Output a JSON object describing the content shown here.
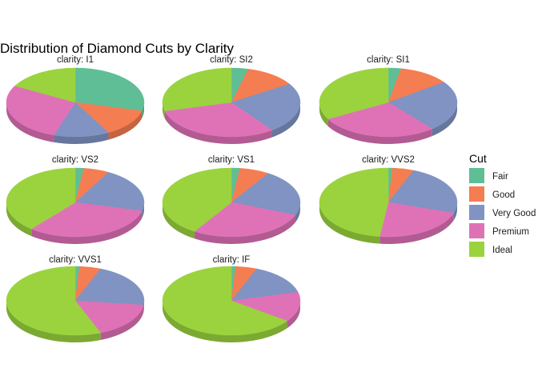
{
  "chart_data": {
    "type": "pie",
    "style": "3d",
    "title": "Distribution of Diamond Cuts by Clarity",
    "facet_prefix": "clarity: ",
    "legend": {
      "title": "Cut",
      "position": "right",
      "entries": [
        {
          "name": "Fair",
          "color": "#5fbe96"
        },
        {
          "name": "Good",
          "color": "#f57d52"
        },
        {
          "name": "Very Good",
          "color": "#8093c3"
        },
        {
          "name": "Premium",
          "color": "#df72b7"
        },
        {
          "name": "Ideal",
          "color": "#9bd33e"
        }
      ]
    },
    "categories": [
      "Fair",
      "Good",
      "Very Good",
      "Premium",
      "Ideal"
    ],
    "facets": [
      {
        "label": "clarity: I1",
        "clarity": "I1",
        "values": [
          0.29,
          0.13,
          0.13,
          0.28,
          0.17
        ]
      },
      {
        "label": "clarity: SI2",
        "clarity": "SI2",
        "values": [
          0.04,
          0.12,
          0.24,
          0.31,
          0.29
        ]
      },
      {
        "label": "clarity: SI1",
        "clarity": "SI1",
        "values": [
          0.03,
          0.12,
          0.24,
          0.28,
          0.33
        ]
      },
      {
        "label": "clarity: VS2",
        "clarity": "VS2",
        "values": [
          0.02,
          0.06,
          0.21,
          0.32,
          0.39
        ]
      },
      {
        "label": "clarity: VS1",
        "clarity": "VS1",
        "values": [
          0.02,
          0.07,
          0.22,
          0.28,
          0.41
        ]
      },
      {
        "label": "clarity: VVS2",
        "clarity": "VVS2",
        "values": [
          0.01,
          0.05,
          0.24,
          0.22,
          0.48
        ]
      },
      {
        "label": "clarity: VVS1",
        "clarity": "VVS1",
        "values": [
          0.01,
          0.05,
          0.21,
          0.17,
          0.56
        ]
      },
      {
        "label": "clarity: IF",
        "clarity": "IF",
        "values": [
          0.01,
          0.05,
          0.15,
          0.14,
          0.65
        ]
      }
    ]
  }
}
